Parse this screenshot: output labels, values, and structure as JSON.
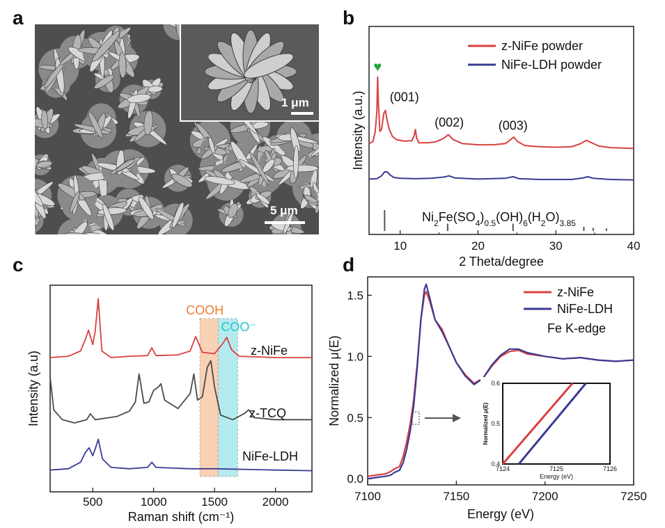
{
  "panels": {
    "a": "a",
    "b": "b",
    "c": "c",
    "d": "d"
  },
  "sem": {
    "scale_main": "5 μm",
    "scale_inset": "1 μm"
  },
  "chart_data": [
    {
      "panel": "b",
      "type": "line",
      "xlabel": "2 Theta/degree",
      "ylabel": "Intensity (a.u.)",
      "xlim": [
        6,
        40
      ],
      "xticks": [
        10,
        20,
        30,
        40
      ],
      "series": [
        {
          "name": "z-NiFe powder",
          "color": "#d9403f",
          "x": [
            6,
            6.5,
            6.8,
            7.0,
            7.1,
            7.2,
            7.4,
            7.6,
            7.9,
            8.1,
            8.3,
            8.6,
            9.0,
            9.5,
            10.5,
            11.5,
            11.8,
            11.95,
            12.1,
            12.4,
            13.5,
            14.5,
            15.5,
            16.2,
            16.8,
            18,
            20,
            22,
            23.5,
            24.2,
            24.6,
            25.1,
            26,
            28,
            30,
            32,
            33.2,
            33.9,
            34.6,
            35.5,
            37,
            40
          ],
          "y": [
            0.2,
            0.25,
            0.5,
            1.0,
            1.85,
            1.2,
            0.5,
            0.55,
            0.95,
            1.02,
            0.8,
            0.55,
            0.38,
            0.3,
            0.26,
            0.27,
            0.4,
            0.55,
            0.35,
            0.22,
            0.22,
            0.24,
            0.32,
            0.42,
            0.3,
            0.2,
            0.17,
            0.17,
            0.2,
            0.3,
            0.36,
            0.25,
            0.15,
            0.12,
            0.11,
            0.12,
            0.2,
            0.28,
            0.22,
            0.14,
            0.1,
            0.08
          ]
        },
        {
          "name": "NiFe-LDH powder",
          "color": "#3a3a95",
          "x": [
            6,
            7,
            7.6,
            8.0,
            8.3,
            8.7,
            9.2,
            10,
            12,
            14,
            15.6,
            16.3,
            17,
            20,
            23.5,
            24.5,
            25.3,
            28,
            32,
            33.5,
            34.1,
            34.8,
            37,
            40
          ],
          "y": [
            -0.68,
            -0.67,
            -0.6,
            -0.5,
            -0.5,
            -0.58,
            -0.64,
            -0.66,
            -0.67,
            -0.66,
            -0.63,
            -0.6,
            -0.65,
            -0.68,
            -0.66,
            -0.62,
            -0.67,
            -0.69,
            -0.69,
            -0.65,
            -0.62,
            -0.66,
            -0.69,
            -0.7
          ]
        }
      ],
      "annotations": [
        "(001)",
        "(002)",
        "(003)"
      ],
      "marker_symbol": "♥",
      "reference_label": "Ni2Fe(SO4)0.5(OH)6(H2O)3.85",
      "reference_lines": [
        {
          "x": 8.0,
          "h": 1.0
        },
        {
          "x": 16.1,
          "h": 0.35
        },
        {
          "x": 24.5,
          "h": 0.35
        },
        {
          "x": 33.6,
          "h": 0.2
        },
        {
          "x": 34.8,
          "h": 0.15
        },
        {
          "x": 36.5,
          "h": 0.12
        }
      ]
    },
    {
      "panel": "c",
      "type": "line",
      "xlabel": "Raman shift (cm⁻¹)",
      "ylabel": "Intensity (a.u)",
      "xlim": [
        150,
        2300
      ],
      "xticks": [
        500,
        1000,
        1500,
        2000
      ],
      "bands": [
        {
          "label": "COOH",
          "range": [
            1380,
            1530
          ],
          "color": "#f7c19b",
          "label_color": "#f07d2c"
        },
        {
          "label": "COO⁻",
          "range": [
            1530,
            1690
          ],
          "color": "#9be4e8",
          "label_color": "#20c4cf"
        }
      ],
      "series": [
        {
          "name": "z-NiFe",
          "color": "#d9403f",
          "x": [
            150,
            300,
            400,
            440,
            465,
            500,
            520,
            545,
            575,
            650,
            800,
            950,
            985,
            1020,
            1200,
            1300,
            1345,
            1400,
            1500,
            1570,
            1600,
            1640,
            1700,
            2000,
            2300
          ],
          "y": [
            1.0,
            1.02,
            1.1,
            1.28,
            1.42,
            1.2,
            1.4,
            1.9,
            1.1,
            1.0,
            1.02,
            1.03,
            1.15,
            1.03,
            1.04,
            1.1,
            1.32,
            1.08,
            1.06,
            1.22,
            1.31,
            1.12,
            1.02,
            1.0,
            1.0
          ]
        },
        {
          "name": "z-TCQ",
          "color": "#4a4a4a",
          "x": [
            150,
            180,
            250,
            350,
            450,
            480,
            520,
            700,
            800,
            850,
            880,
            920,
            960,
            1000,
            1040,
            1060,
            1090,
            1200,
            1300,
            1330,
            1360,
            1400,
            1440,
            1470,
            1500,
            1550,
            1650,
            1750,
            1780,
            1830,
            2000,
            2300
          ],
          "y": [
            0.7,
            0.2,
            0.05,
            0.0,
            0.05,
            0.14,
            0.05,
            0.1,
            0.18,
            0.32,
            0.75,
            0.3,
            0.32,
            0.5,
            0.55,
            0.6,
            0.35,
            0.22,
            0.45,
            0.75,
            0.35,
            0.4,
            0.85,
            0.95,
            0.55,
            0.12,
            0.05,
            0.15,
            0.2,
            0.08,
            0.05,
            0.05
          ]
        },
        {
          "name": "NiFe-LDH",
          "color": "#3a3a95",
          "x": [
            150,
            300,
            400,
            440,
            470,
            500,
            520,
            545,
            580,
            650,
            800,
            950,
            985,
            1020,
            1300,
            1500,
            2000,
            2300
          ],
          "y": [
            -0.72,
            -0.7,
            -0.6,
            -0.45,
            -0.38,
            -0.5,
            -0.4,
            -0.25,
            -0.55,
            -0.68,
            -0.7,
            -0.68,
            -0.6,
            -0.68,
            -0.7,
            -0.7,
            -0.72,
            -0.73
          ]
        }
      ]
    },
    {
      "panel": "d",
      "type": "line",
      "xlabel": "Energy (eV)",
      "ylabel": "Normalized μ(E)",
      "xlim": [
        7100,
        7250
      ],
      "ylim": [
        -0.05,
        1.65
      ],
      "xticks": [
        7100,
        7150,
        7200,
        7250
      ],
      "yticks": [
        0.0,
        0.5,
        1.0,
        1.5
      ],
      "annotation": "Fe K-edge",
      "series": [
        {
          "name": "z-NiFe",
          "color": "#d9403f",
          "x": [
            7100,
            7105,
            7110,
            7113,
            7115,
            7118,
            7120,
            7122,
            7124,
            7126,
            7128,
            7130,
            7132,
            7133,
            7135,
            7138,
            7142,
            7146,
            7150,
            7155,
            7160,
            7165,
            7170,
            7175,
            7180,
            7185,
            7190,
            7200,
            7210,
            7220,
            7230,
            7240,
            7250
          ],
          "y": [
            0.02,
            0.03,
            0.04,
            0.06,
            0.08,
            0.1,
            0.18,
            0.3,
            0.45,
            0.65,
            0.95,
            1.3,
            1.5,
            1.53,
            1.45,
            1.3,
            1.22,
            1.08,
            0.95,
            0.85,
            0.78,
            0.82,
            0.92,
            1.0,
            1.04,
            1.05,
            1.02,
            1.0,
            0.98,
            0.99,
            0.97,
            0.96,
            0.97
          ]
        },
        {
          "name": "NiFe-LDH",
          "color": "#3a3a95",
          "x": [
            7100,
            7105,
            7110,
            7113,
            7115,
            7118,
            7120,
            7122,
            7124,
            7126,
            7128,
            7130,
            7132,
            7133,
            7135,
            7138,
            7142,
            7146,
            7150,
            7155,
            7160,
            7165,
            7170,
            7175,
            7180,
            7185,
            7190,
            7200,
            7210,
            7220,
            7230,
            7240,
            7250
          ],
          "y": [
            0.0,
            0.01,
            0.02,
            0.03,
            0.05,
            0.07,
            0.13,
            0.24,
            0.39,
            0.6,
            0.92,
            1.3,
            1.55,
            1.59,
            1.48,
            1.3,
            1.2,
            1.08,
            0.95,
            0.84,
            0.77,
            0.82,
            0.93,
            1.01,
            1.06,
            1.06,
            1.03,
            1.0,
            0.98,
            0.99,
            0.97,
            0.96,
            0.97
          ]
        }
      ],
      "inset": {
        "xlabel": "Energy (eV)",
        "ylabel": "Normalized μ(E)",
        "xlim": [
          7124,
          7126
        ],
        "ylim": [
          0.4,
          0.6
        ],
        "xticks": [
          "7124",
          "7125",
          "7126"
        ],
        "yticks": [
          "0.4",
          "0.5",
          "0.6"
        ],
        "series": [
          {
            "name": "z-NiFe",
            "x": [
              7124.0,
              7125.3
            ],
            "y": [
              0.4,
              0.6
            ]
          },
          {
            "name": "NiFe-LDH",
            "x": [
              7124.3,
              7125.55
            ],
            "y": [
              0.4,
              0.6
            ]
          }
        ]
      }
    }
  ]
}
